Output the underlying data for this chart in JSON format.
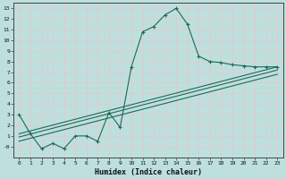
{
  "xlabel": "Humidex (Indice chaleur)",
  "bg_color": "#bde0de",
  "grid_color": "#e8c8c8",
  "line_color": "#1a6b5a",
  "xlim": [
    -0.5,
    23.5
  ],
  "ylim": [
    -1.0,
    13.5
  ],
  "xticks": [
    0,
    1,
    2,
    3,
    4,
    5,
    6,
    7,
    8,
    9,
    10,
    11,
    12,
    13,
    14,
    15,
    16,
    17,
    18,
    19,
    20,
    21,
    22,
    23
  ],
  "yticks": [
    0,
    1,
    2,
    3,
    4,
    5,
    6,
    7,
    8,
    9,
    10,
    11,
    12,
    13
  ],
  "ytick_labels": [
    "-0",
    "1",
    "2",
    "3",
    "4",
    "5",
    "6",
    "7",
    "8",
    "9",
    "10",
    "11",
    "12",
    "13"
  ],
  "line1_x": [
    0,
    1,
    2,
    3,
    4,
    5,
    6,
    7,
    8,
    9,
    10,
    11,
    12,
    13,
    14,
    15,
    16,
    17,
    18,
    19,
    20,
    21,
    22,
    23
  ],
  "line1_y": [
    3.0,
    1.2,
    -0.2,
    0.3,
    -0.2,
    1.0,
    1.0,
    0.5,
    3.2,
    1.8,
    7.5,
    10.8,
    11.3,
    12.4,
    13.0,
    11.5,
    8.5,
    8.0,
    7.9,
    7.7,
    7.6,
    7.5,
    7.5,
    7.5
  ],
  "line2_x": [
    0,
    23
  ],
  "line2_y": [
    1.2,
    7.5
  ],
  "line3_x": [
    0,
    23
  ],
  "line3_y": [
    0.5,
    6.8
  ],
  "line4_x": [
    0,
    23
  ],
  "line4_y": [
    0.9,
    7.2
  ]
}
